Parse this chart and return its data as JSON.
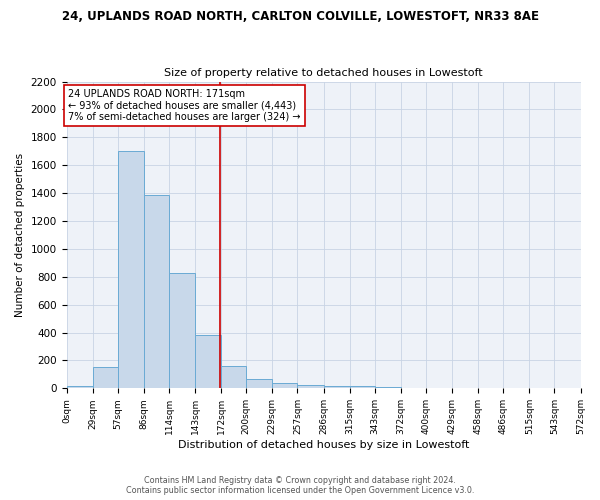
{
  "title1": "24, UPLANDS ROAD NORTH, CARLTON COLVILLE, LOWESTOFT, NR33 8AE",
  "title2": "Size of property relative to detached houses in Lowestoft",
  "xlabel": "Distribution of detached houses by size in Lowestoft",
  "ylabel": "Number of detached properties",
  "bar_edges": [
    0,
    29,
    57,
    86,
    114,
    143,
    172,
    200,
    229,
    257,
    286,
    315,
    343,
    372,
    400,
    429,
    458,
    486,
    515,
    543,
    572
  ],
  "bar_heights": [
    15,
    150,
    1700,
    1390,
    830,
    380,
    160,
    65,
    35,
    25,
    20,
    15,
    10,
    0,
    0,
    0,
    0,
    0,
    0,
    0
  ],
  "bar_color": "#c8d8ea",
  "bar_edge_color": "#6aaad4",
  "property_size": 171,
  "vline_color": "#cc0000",
  "annotation_line1": "24 UPLANDS ROAD NORTH: 171sqm",
  "annotation_line2": "← 93% of detached houses are smaller (4,443)",
  "annotation_line3": "7% of semi-detached houses are larger (324) →",
  "annotation_box_color": "#ffffff",
  "annotation_box_edge": "#cc0000",
  "grid_color": "#c8d4e4",
  "background_color": "#eef2f8",
  "tick_labels": [
    "0sqm",
    "29sqm",
    "57sqm",
    "86sqm",
    "114sqm",
    "143sqm",
    "172sqm",
    "200sqm",
    "229sqm",
    "257sqm",
    "286sqm",
    "315sqm",
    "343sqm",
    "372sqm",
    "400sqm",
    "429sqm",
    "458sqm",
    "486sqm",
    "515sqm",
    "543sqm",
    "572sqm"
  ],
  "ylim": [
    0,
    2200
  ],
  "yticks": [
    0,
    200,
    400,
    600,
    800,
    1000,
    1200,
    1400,
    1600,
    1800,
    2000,
    2200
  ],
  "footer1": "Contains HM Land Registry data © Crown copyright and database right 2024.",
  "footer2": "Contains public sector information licensed under the Open Government Licence v3.0."
}
